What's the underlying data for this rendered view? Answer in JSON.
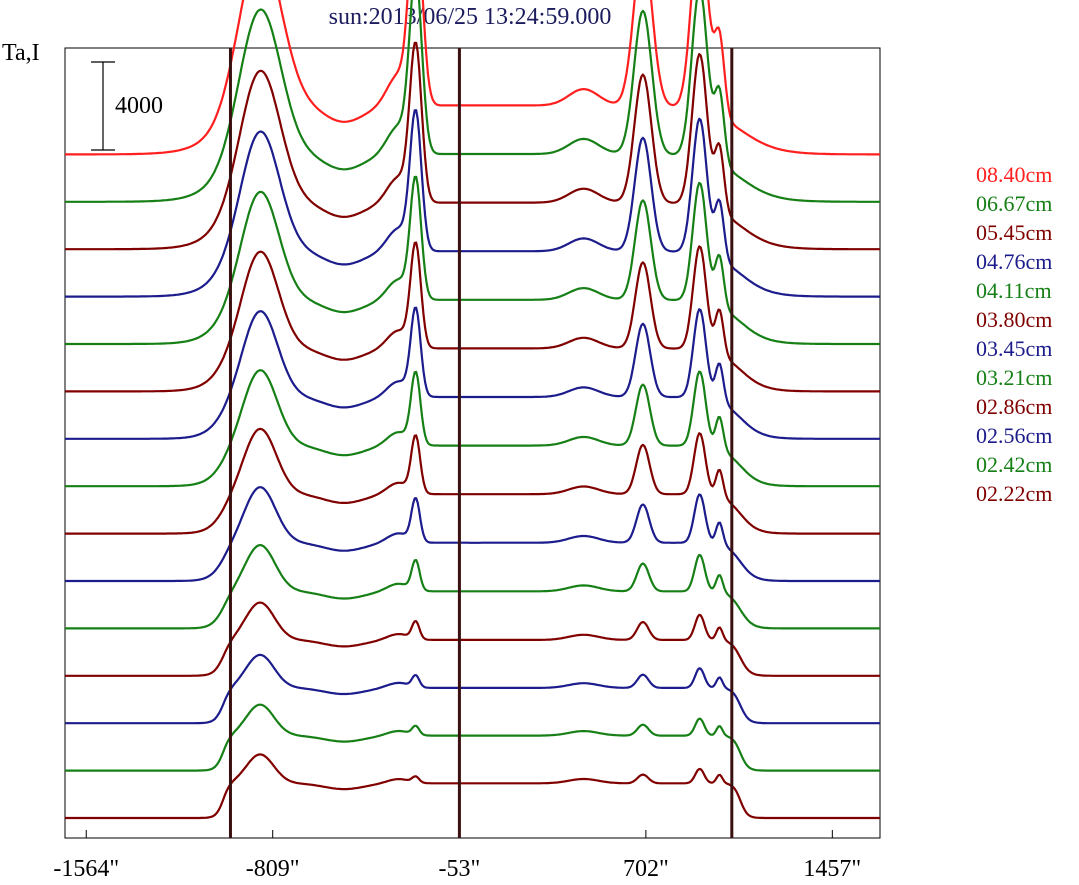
{
  "chart_data": {
    "type": "line",
    "title": "sun:2013/06/25 13:24:59.000",
    "ylabel": "Ta,I",
    "xlabel": "",
    "xlim": [
      -1650,
      1650
    ],
    "x_ticks": [
      {
        "value": -1564,
        "label": "-1564\""
      },
      {
        "value": -809,
        "label": "-809\""
      },
      {
        "value": -53,
        "label": "-53\""
      },
      {
        "value": 702,
        "label": "702\""
      },
      {
        "value": 1457,
        "label": "1457\""
      }
    ],
    "vertical_lines": [
      -980,
      -53,
      1050
    ],
    "scale_bar": {
      "label": "4000",
      "value": 4000
    },
    "grid": false,
    "legend_position": "right",
    "series": [
      {
        "name": "08.40cm",
        "color": "#ff1f1f",
        "offset_rank": 12
      },
      {
        "name": "06.67cm",
        "color": "#168016",
        "offset_rank": 11
      },
      {
        "name": "05.45cm",
        "color": "#800000",
        "offset_rank": 10
      },
      {
        "name": "04.76cm",
        "color": "#1c1c8c",
        "offset_rank": 9
      },
      {
        "name": "04.11cm",
        "color": "#168016",
        "offset_rank": 8
      },
      {
        "name": "03.80cm",
        "color": "#800000",
        "offset_rank": 7
      },
      {
        "name": "03.45cm",
        "color": "#1c1c8c",
        "offset_rank": 6
      },
      {
        "name": "03.21cm",
        "color": "#168016",
        "offset_rank": 5
      },
      {
        "name": "02.86cm",
        "color": "#800000",
        "offset_rank": 4
      },
      {
        "name": "02.56cm",
        "color": "#1c1c8c",
        "offset_rank": 3
      },
      {
        "name": "02.42cm",
        "color": "#168016",
        "offset_rank": 2
      },
      {
        "name": "02.22cm",
        "color": "#800000",
        "offset_rank": 1
      },
      {
        "name": "",
        "color": "#1c1c8c",
        "offset_rank": 0.5,
        "unlabeled": true
      },
      {
        "name": "",
        "color": "#168016",
        "offset_rank": 0.25,
        "unlabeled": true
      },
      {
        "name": "",
        "color": "#800000",
        "offset_rank": 0,
        "unlabeled": true
      }
    ]
  }
}
